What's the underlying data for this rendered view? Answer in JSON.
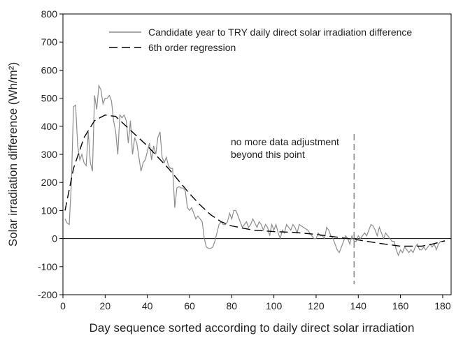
{
  "chart_data": {
    "type": "line",
    "xlabel": "Day sequence sorted according to daily direct solar irradiation",
    "ylabel": "Solar irradiation difference (Wh/m²)",
    "xlim": [
      0,
      184
    ],
    "xticks": [
      0,
      20,
      40,
      60,
      80,
      100,
      120,
      140,
      160,
      180
    ],
    "ylim": [
      -200,
      800
    ],
    "yticks": [
      -200,
      -100,
      0,
      100,
      200,
      300,
      400,
      500,
      600,
      700,
      800
    ],
    "zero_line": 0,
    "vline": 138,
    "annotation": [
      "no more data adjustment",
      "beyond this point"
    ],
    "series": [
      {
        "name": "Candidate year to TRY daily direct solar irradiation difference",
        "color": "#8c8c8c",
        "dash": false,
        "x": [
          1,
          2,
          3,
          4,
          5,
          6,
          7,
          8,
          9,
          10,
          11,
          12,
          13,
          14,
          15,
          16,
          17,
          18,
          19,
          20,
          21,
          22,
          23,
          24,
          25,
          26,
          27,
          28,
          29,
          30,
          31,
          32,
          33,
          34,
          35,
          36,
          37,
          38,
          39,
          40,
          41,
          42,
          43,
          44,
          45,
          46,
          47,
          48,
          49,
          50,
          51,
          52,
          53,
          54,
          55,
          56,
          57,
          58,
          59,
          60,
          61,
          62,
          63,
          64,
          65,
          66,
          67,
          68,
          69,
          70,
          71,
          72,
          73,
          74,
          75,
          76,
          77,
          78,
          79,
          80,
          81,
          82,
          83,
          84,
          85,
          86,
          87,
          88,
          89,
          90,
          91,
          92,
          93,
          94,
          95,
          96,
          97,
          98,
          99,
          100,
          101,
          102,
          103,
          104,
          105,
          106,
          107,
          108,
          109,
          110,
          111,
          112,
          113,
          114,
          115,
          116,
          117,
          118,
          119,
          120,
          121,
          122,
          123,
          124,
          125,
          126,
          127,
          128,
          129,
          130,
          131,
          132,
          133,
          134,
          135,
          136,
          137,
          138,
          139,
          140,
          141,
          142,
          143,
          144,
          145,
          146,
          147,
          148,
          149,
          150,
          151,
          152,
          153,
          154,
          155,
          156,
          157,
          158,
          159,
          160,
          161,
          162,
          163,
          164,
          165,
          166,
          167,
          168,
          169,
          170,
          171,
          172,
          173,
          174,
          175,
          176,
          177,
          178,
          179,
          180,
          181
        ],
        "values": [
          70,
          55,
          50,
          200,
          470,
          475,
          330,
          280,
          300,
          270,
          260,
          380,
          270,
          240,
          510,
          460,
          545,
          530,
          480,
          500,
          500,
          510,
          490,
          420,
          380,
          300,
          440,
          430,
          440,
          420,
          340,
          420,
          300,
          360,
          340,
          290,
          240,
          270,
          280,
          310,
          340,
          280,
          330,
          300,
          360,
          380,
          290,
          270,
          290,
          260,
          250,
          250,
          110,
          180,
          185,
          180,
          180,
          170,
          110,
          100,
          110,
          90,
          70,
          80,
          70,
          60,
          0,
          -30,
          -35,
          -35,
          -30,
          -10,
          20,
          50,
          60,
          50,
          50,
          60,
          90,
          70,
          100,
          100,
          80,
          60,
          40,
          50,
          60,
          40,
          50,
          70,
          55,
          40,
          60,
          50,
          30,
          50,
          40,
          10,
          50,
          30,
          50,
          20,
          0,
          30,
          20,
          50,
          40,
          30,
          50,
          40,
          20,
          50,
          45,
          40,
          35,
          30,
          20,
          10,
          0,
          0,
          20,
          10,
          10,
          0,
          40,
          30,
          10,
          0,
          -20,
          -40,
          -50,
          -30,
          -10,
          10,
          0,
          -20,
          10,
          -10,
          -10,
          10,
          0,
          10,
          20,
          10,
          30,
          50,
          45,
          30,
          10,
          40,
          20,
          0,
          20,
          10,
          0,
          -10,
          -10,
          -40,
          -60,
          -40,
          -50,
          -30,
          -40,
          -50,
          -40,
          -50,
          -30,
          -20,
          -40,
          -40,
          -30,
          -40,
          -30,
          -20,
          -30,
          -20,
          -40,
          -20,
          -10,
          -10,
          -10
        ]
      },
      {
        "name": "6th order regression",
        "color": "#000000",
        "dash": true,
        "x": [
          1,
          5,
          10,
          15,
          20,
          25,
          30,
          35,
          40,
          45,
          50,
          55,
          60,
          65,
          70,
          75,
          80,
          90,
          100,
          110,
          120,
          130,
          140,
          150,
          160,
          170,
          175,
          181
        ],
        "values": [
          100,
          250,
          360,
          420,
          440,
          435,
          400,
          365,
          330,
          290,
          250,
          205,
          160,
          120,
          85,
          60,
          45,
          30,
          25,
          22,
          15,
          5,
          -5,
          -17,
          -27,
          -27,
          -20,
          -8
        ]
      }
    ]
  }
}
